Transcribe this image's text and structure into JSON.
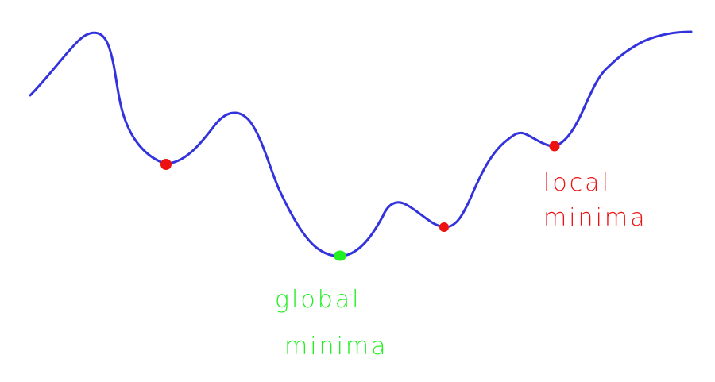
{
  "colors": {
    "curve": "#3333dd",
    "local_minimum": "#ee1111",
    "global_minimum": "#22ee22",
    "background": "#ffffff"
  },
  "labels": {
    "global": {
      "line1": "global",
      "line2": "minima"
    },
    "local": {
      "line1": "local",
      "line2": "minima"
    }
  }
}
